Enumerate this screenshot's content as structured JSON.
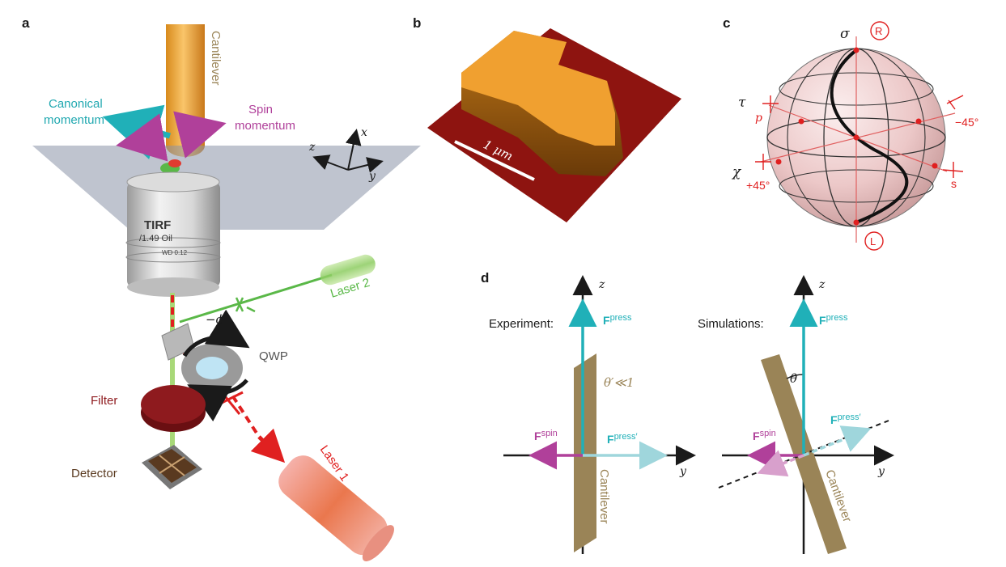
{
  "panels": {
    "a": {
      "letter": "a",
      "labels": {
        "cantilever": "Cantilever",
        "canonical_1": "Canonical",
        "canonical_2": "momentum",
        "spin_1": "Spin",
        "spin_2": "momentum",
        "axis_x": "x",
        "axis_y": "y",
        "axis_z": "z",
        "objective_1": "TIRF",
        "objective_2": "/1.49 Oil",
        "objective_3": "WD 0.12",
        "laser2": "Laser 2",
        "laser1": "Laser 1",
        "phi": "−ϕ",
        "qwp": "QWP",
        "filter": "Filter",
        "detector": "Detector"
      }
    },
    "b": {
      "letter": "b",
      "scale_label": "1 μm"
    },
    "c": {
      "letter": "c",
      "labels": {
        "sigma": "σ",
        "tau": "τ",
        "chi": "χ",
        "p": "p",
        "s": "s",
        "minus45": "−45°",
        "plus45": "+45°",
        "R": "R",
        "L": "L"
      }
    },
    "d": {
      "letter": "d",
      "left": {
        "title": "Experiment:",
        "z": "z",
        "y": "y",
        "fpress": "F",
        "fpress_sup": "press",
        "fspin": "F",
        "fspin_sup": "spin",
        "fpress2": "F",
        "fpress2_sup": "press′",
        "theta": "θ′≪1",
        "cantilever": "Cantilever"
      },
      "right": {
        "title": "Simulations:",
        "z": "z",
        "y": "y",
        "fpress": "F",
        "fpress_sup": "press",
        "fspin": "F",
        "fspin_sup": "spin",
        "fpress2": "F",
        "fpress2_sup": "press′",
        "theta": "θ",
        "cantilever": "Cantilever"
      }
    }
  },
  "colors": {
    "teal": "#20b0b8",
    "magenta": "#b0409a",
    "green": "#5ab848",
    "red": "#e02020",
    "cantilever": "#9a8457",
    "filter": "#8e1a1e",
    "detector": "#5a3a20",
    "afm_substrate": "#8e1410",
    "afm_flake": "#f0a030"
  }
}
